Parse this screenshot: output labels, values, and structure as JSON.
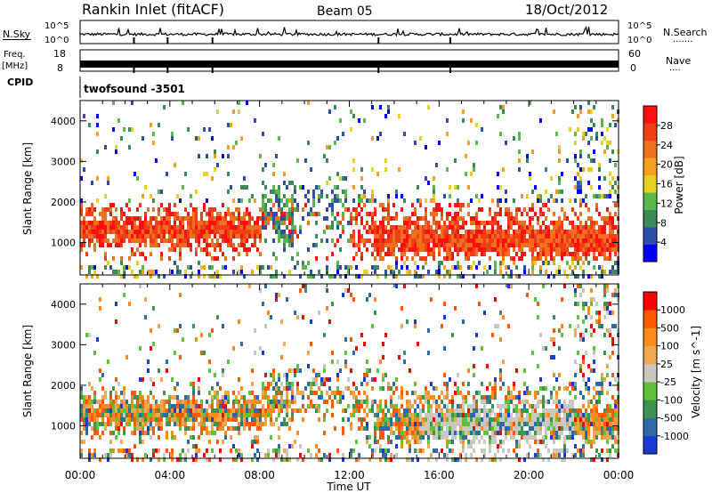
{
  "header": {
    "title": "Rankin Inlet (fitACF)",
    "beam": "Beam 05",
    "date": "18/Oct/2012"
  },
  "top_panels": {
    "nsky_label": "N.Sky",
    "nsearch_label": "N.Search",
    "nsearch_dots": "·······",
    "nsky_ticks": [
      "10^5",
      "10^0"
    ],
    "nsearch_ticks": [
      "10^5",
      "10^0"
    ],
    "freq_label": "Freq.",
    "freq_unit": "[MHz]",
    "freq_ticks": [
      "18",
      "8"
    ],
    "nave_label": "Nave",
    "nave_dots": "····",
    "nave_ticks": [
      "60",
      "0"
    ],
    "cpid_label": "CPID",
    "cpid_value": "twofsound  -3501"
  },
  "colors": {
    "power_scale": [
      "#0000ff",
      "#2d4fa8",
      "#3c8a58",
      "#58b84a",
      "#e8d020",
      "#f5a020",
      "#f07020",
      "#f04018",
      "#ff1010"
    ],
    "velocity_scale": [
      "#ff0000",
      "#ff5a00",
      "#ff8c1a",
      "#f0a850",
      "#c8c8c0",
      "#5fc23a",
      "#3c9450",
      "#2f6aa8",
      "#1a3ad8"
    ]
  },
  "chart_data": [
    {
      "type": "heatmap",
      "name": "Power",
      "ylabel": "Slant Range [km]",
      "yticks": [
        "1000",
        "2000",
        "3000",
        "4000"
      ],
      "ylim": [
        200,
        4500
      ],
      "xlim": [
        0,
        24
      ],
      "colorbar_label": "Power [dB]",
      "colorbar_ticks": [
        "4",
        "8",
        "12",
        "16",
        "20",
        "24",
        "28"
      ],
      "colorbar_range": [
        0,
        32
      ]
    },
    {
      "type": "heatmap",
      "name": "Velocity",
      "ylabel": "Slant Range [km]",
      "yticks": [
        "1000",
        "2000",
        "3000",
        "4000"
      ],
      "ylim": [
        200,
        4500
      ],
      "xlim": [
        0,
        24
      ],
      "colorbar_label": "Velocity [m s^-1]",
      "colorbar_ticks": [
        "1000",
        "500",
        "100",
        "25",
        "-25",
        "-100",
        "-500",
        "-1000"
      ]
    }
  ],
  "xaxis": {
    "ticks": [
      "00:00",
      "04:00",
      "08:00",
      "12:00",
      "16:00",
      "20:00",
      "00:00"
    ],
    "label": "Time UT"
  }
}
